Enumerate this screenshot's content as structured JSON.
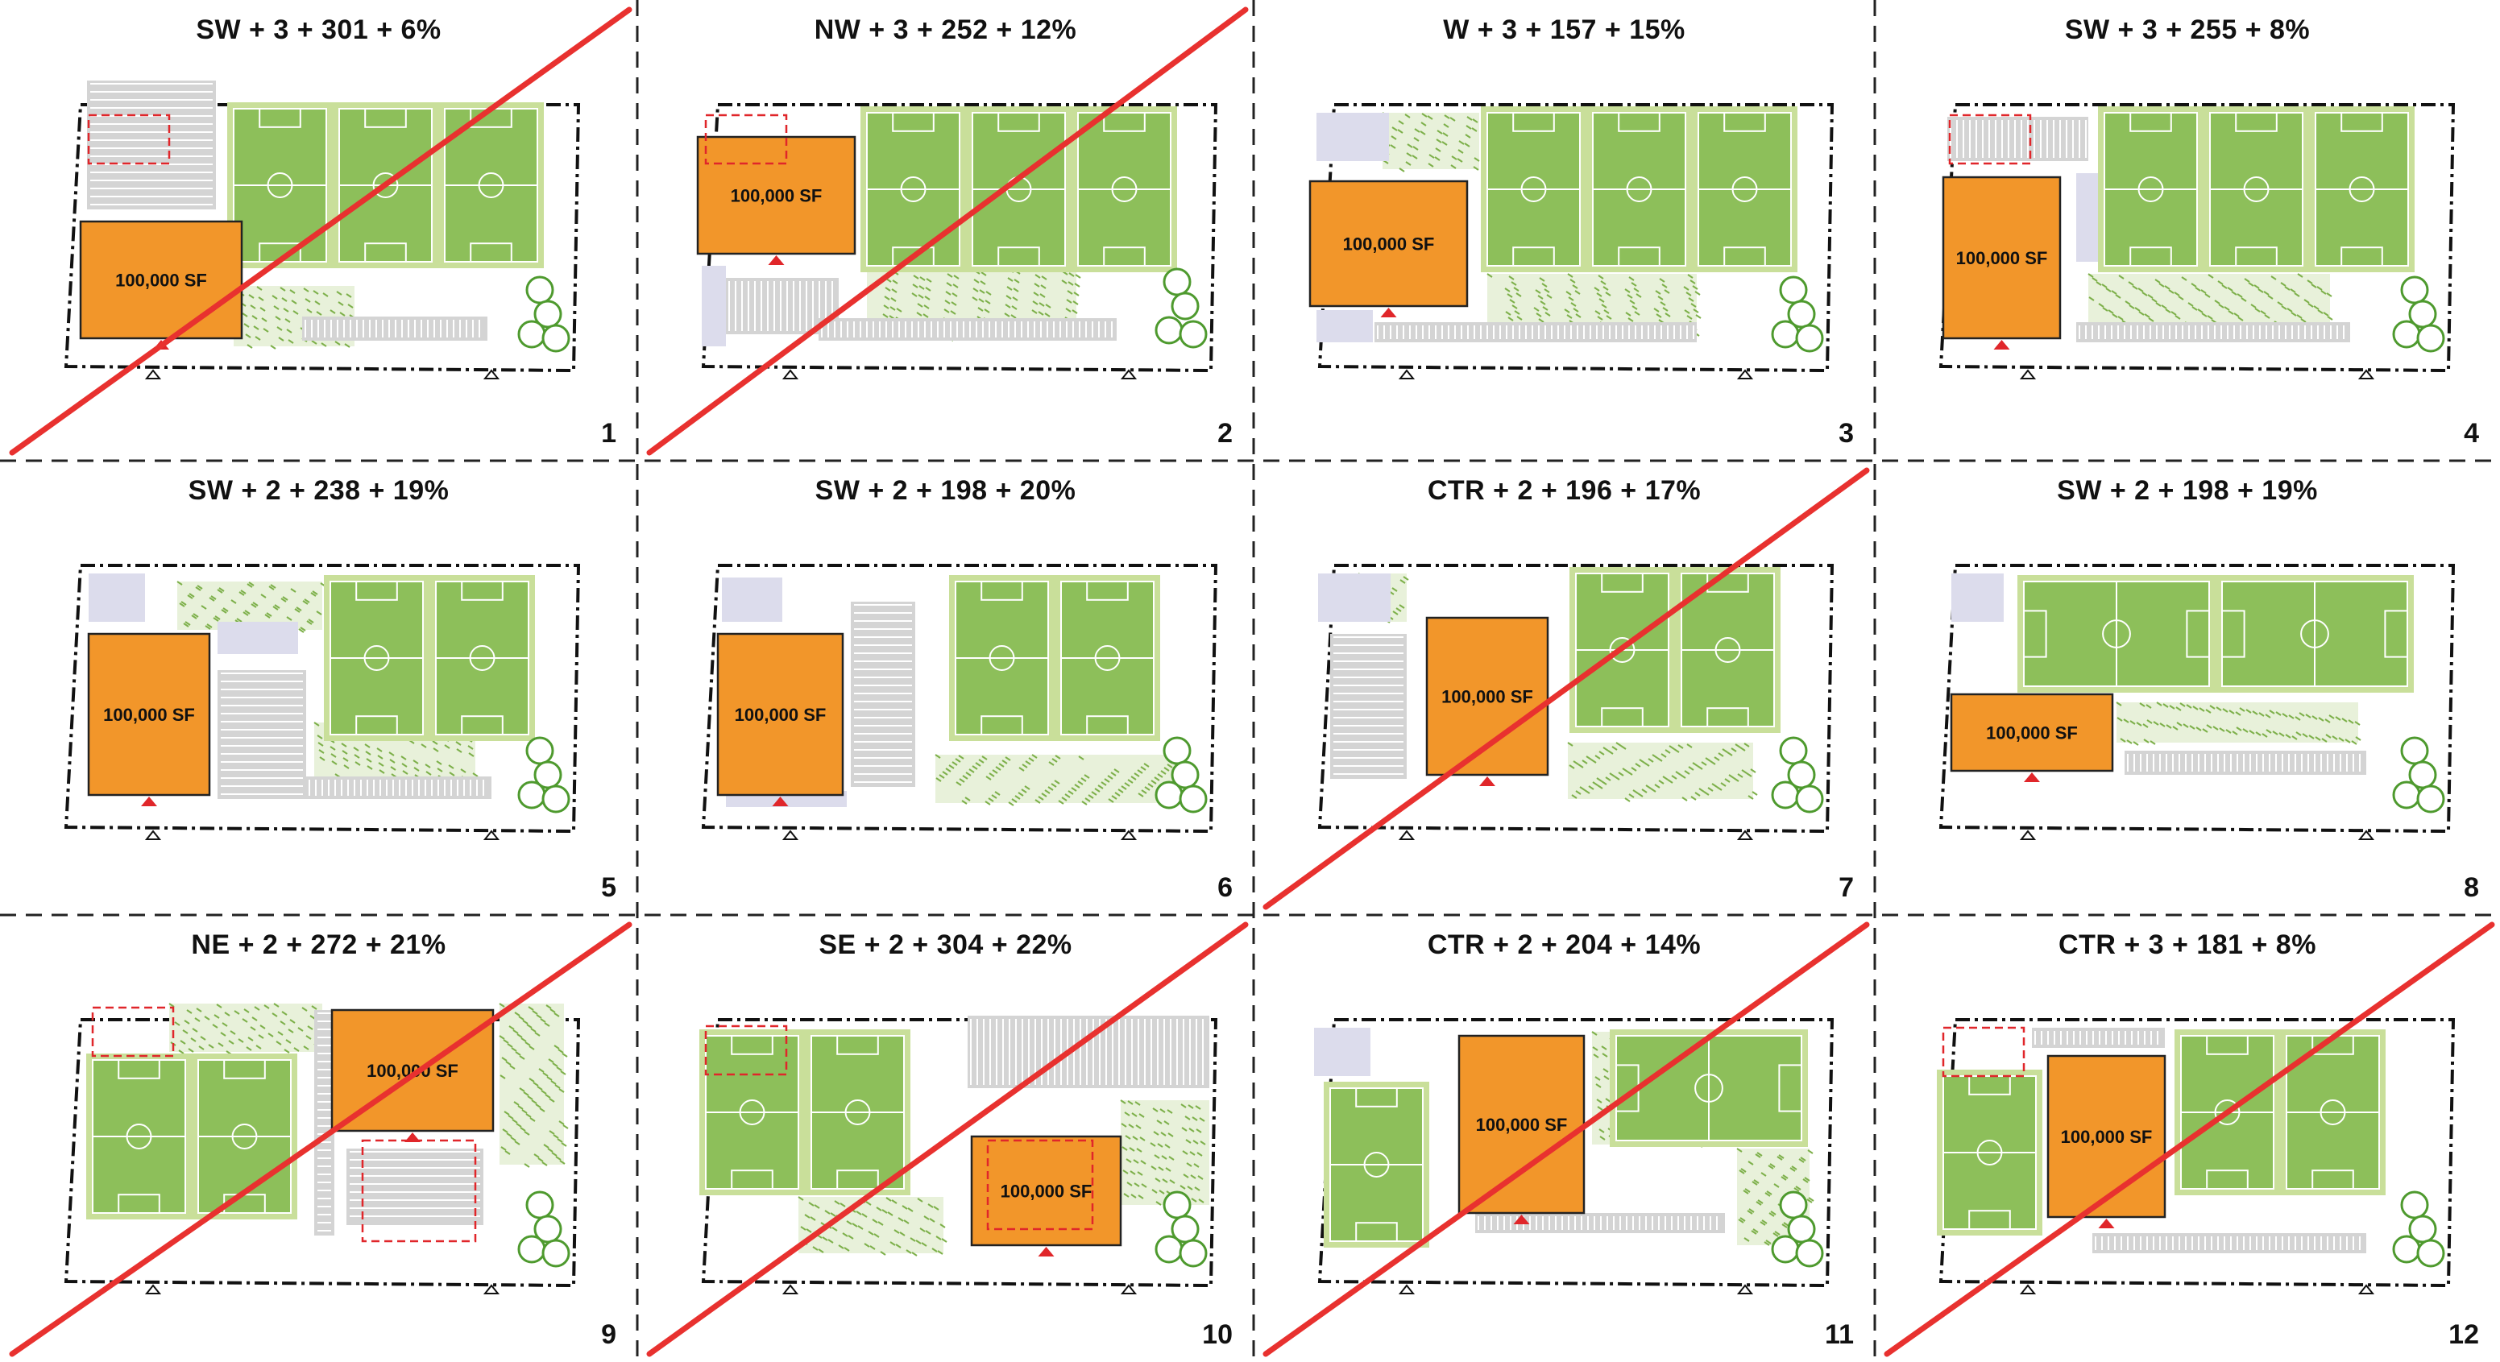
{
  "colors": {
    "building": "#F2962A",
    "field": "#8DBF5A",
    "field_border": "#C9DF9A",
    "landscape": "#7DB04A",
    "parking": "#D4D4D4",
    "lavender": "#DCDCEC",
    "marker": "#E0262A",
    "reject_line": "#E8312F"
  },
  "building_label": "100,000 SF",
  "options": [
    {
      "title": "SW + 3 + 301 + 6%",
      "number": "1",
      "crossed": true
    },
    {
      "title": "NW + 3 + 252 + 12%",
      "number": "2",
      "crossed": true
    },
    {
      "title": "W + 3 + 157 + 15%",
      "number": "3",
      "crossed": false
    },
    {
      "title": "SW + 3 + 255 + 8%",
      "number": "4",
      "crossed": false
    },
    {
      "title": "SW + 2 + 238 + 19%",
      "number": "5",
      "crossed": false
    },
    {
      "title": "SW + 2 + 198 + 20%",
      "number": "6",
      "crossed": false
    },
    {
      "title": "CTR + 2 + 196 + 17%",
      "number": "7",
      "crossed": true
    },
    {
      "title": "SW + 2 + 198 + 19%",
      "number": "8",
      "crossed": false
    },
    {
      "title": "NE + 2 + 272 + 21%",
      "number": "9",
      "crossed": true
    },
    {
      "title": "SE + 2 + 304 + 22%",
      "number": "10",
      "crossed": true
    },
    {
      "title": "CTR + 2 + 204 + 14%",
      "number": "11",
      "crossed": true
    },
    {
      "title": "CTR + 3 + 181 + 8%",
      "number": "12",
      "crossed": true
    }
  ]
}
